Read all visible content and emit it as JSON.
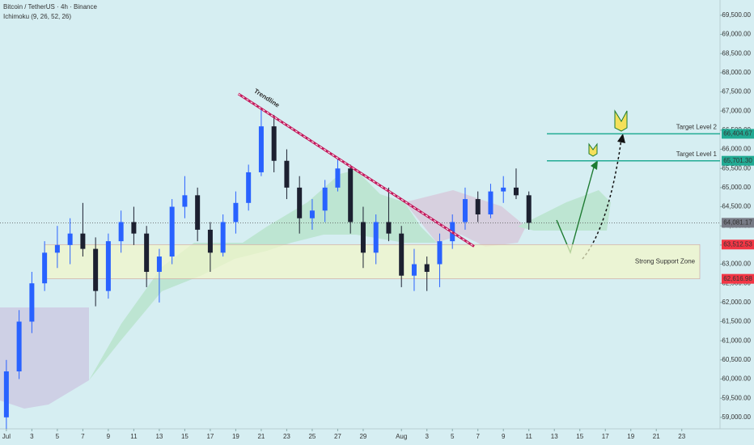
{
  "chart_data": {
    "type": "candlestick",
    "title": "Bitcoin / TetherUS · 4h · Binance",
    "subtitle": "Ichimoku (9, 26, 52, 26)",
    "x": [
      0,
      1,
      2,
      3,
      4,
      5,
      6,
      7,
      8,
      9,
      10,
      11,
      12,
      13,
      14,
      15,
      16,
      17,
      18,
      19,
      20,
      21,
      22,
      23,
      24,
      25,
      26,
      27,
      28,
      29,
      30,
      31,
      32,
      33,
      34,
      35,
      36,
      37,
      38,
      39,
      40,
      41
    ],
    "open": [
      59000,
      60200,
      61500,
      62500,
      63300,
      63500,
      63800,
      63400,
      62300,
      63600,
      64100,
      63800,
      62800,
      63200,
      64500,
      64800,
      63900,
      63300,
      64100,
      64600,
      65400,
      66600,
      65700,
      65000,
      64200,
      64400,
      65000,
      65500,
      64100,
      63300,
      64100,
      63800,
      62700,
      63000,
      63000,
      63600,
      64100,
      64700,
      64300,
      64900,
      65000,
      64800
    ],
    "high": [
      60500,
      61800,
      62800,
      63600,
      64000,
      64200,
      64600,
      63700,
      63800,
      64400,
      64500,
      64000,
      63400,
      64700,
      65300,
      65000,
      64100,
      64300,
      64900,
      65600,
      67100,
      66900,
      66000,
      65300,
      64700,
      65200,
      65800,
      65600,
      64500,
      64300,
      65000,
      64000,
      63400,
      63200,
      63800,
      64300,
      65000,
      64900,
      65100,
      65300,
      65500,
      64900
    ],
    "low": [
      58700,
      60000,
      61200,
      62300,
      62900,
      63000,
      63200,
      61900,
      62100,
      63300,
      63500,
      62400,
      62000,
      63000,
      64200,
      63600,
      62800,
      63200,
      63800,
      64400,
      65300,
      65400,
      64700,
      63800,
      63900,
      64100,
      64900,
      63800,
      62900,
      63000,
      63600,
      62400,
      62300,
      62300,
      62400,
      63400,
      63900,
      64100,
      64200,
      64600,
      64700,
      63900
    ],
    "close": [
      60200,
      61500,
      62500,
      63300,
      63500,
      63800,
      63400,
      62300,
      63600,
      64100,
      63800,
      62800,
      63200,
      64500,
      64800,
      63900,
      63300,
      64100,
      64600,
      65400,
      66600,
      65700,
      65000,
      64200,
      64400,
      65000,
      65500,
      64100,
      63300,
      64100,
      63800,
      62700,
      63000,
      62800,
      63600,
      64100,
      64700,
      64300,
      64900,
      65000,
      64800,
      64081.17
    ],
    "up_color": "#2962ff",
    "down_color": "#1c2030",
    "xlim": [
      -0.5,
      56
    ],
    "xticks": [
      {
        "value": 0,
        "label": "Jul"
      },
      {
        "value": 2,
        "label": "3"
      },
      {
        "value": 4,
        "label": "5"
      },
      {
        "value": 6,
        "label": "7"
      },
      {
        "value": 8,
        "label": "9"
      },
      {
        "value": 10,
        "label": "11"
      },
      {
        "value": 12,
        "label": "13"
      },
      {
        "value": 14,
        "label": "15"
      },
      {
        "value": 16,
        "label": "17"
      },
      {
        "value": 18,
        "label": "19"
      },
      {
        "value": 20,
        "label": "21"
      },
      {
        "value": 22,
        "label": "23"
      },
      {
        "value": 24,
        "label": "25"
      },
      {
        "value": 26,
        "label": "27"
      },
      {
        "value": 28,
        "label": "29"
      },
      {
        "value": 31,
        "label": "Aug"
      },
      {
        "value": 33,
        "label": "3"
      },
      {
        "value": 35,
        "label": "5"
      },
      {
        "value": 37,
        "label": "7"
      },
      {
        "value": 39,
        "label": "9"
      },
      {
        "value": 41,
        "label": "11"
      },
      {
        "value": 43,
        "label": "13"
      },
      {
        "value": 45,
        "label": "15"
      },
      {
        "value": 47,
        "label": "17"
      },
      {
        "value": 49,
        "label": "19"
      },
      {
        "value": 51,
        "label": "21"
      },
      {
        "value": 53,
        "label": "23"
      }
    ],
    "ylim": [
      58700,
      69900
    ],
    "yticks": [
      {
        "value": 59000,
        "label": "59,000.00"
      },
      {
        "value": 59500,
        "label": "59,500.00"
      },
      {
        "value": 60000,
        "label": "60,000.00"
      },
      {
        "value": 60500,
        "label": "60,500.00"
      },
      {
        "value": 61000,
        "label": "61,000.00"
      },
      {
        "value": 61500,
        "label": "61,500.00"
      },
      {
        "value": 62000,
        "label": "62,000.00"
      },
      {
        "value": 62500,
        "label": "62,500.00"
      },
      {
        "value": 63000,
        "label": "63,000.00"
      },
      {
        "value": 63500,
        "label": "63,500.00"
      },
      {
        "value": 64000,
        "label": "64,000.00"
      },
      {
        "value": 64500,
        "label": "64,500.00"
      },
      {
        "value": 65000,
        "label": "65,000.00"
      },
      {
        "value": 65500,
        "label": "65,500.00"
      },
      {
        "value": 66000,
        "label": "66,000.00"
      },
      {
        "value": 66500,
        "label": "66,500.00"
      },
      {
        "value": 67000,
        "label": "67,000.00"
      },
      {
        "value": 67500,
        "label": "67,500.00"
      },
      {
        "value": 68000,
        "label": "68,000.00"
      },
      {
        "value": 68500,
        "label": "68,500.00"
      },
      {
        "value": 69000,
        "label": "69,000.00"
      },
      {
        "value": 69500,
        "label": "69,500.00"
      }
    ],
    "current": {
      "value": 64081.17,
      "label": "64,081.17",
      "color": "#787b86"
    },
    "support_zone": {
      "label": "Strong Support Zone",
      "low": {
        "value": 62616.98,
        "label": "62,616.98"
      },
      "high": {
        "value": 63512.53,
        "label": "63,512.53"
      },
      "color": "#f23645"
    },
    "targets": [
      {
        "label": "Target Level 1",
        "value": 65701.3,
        "value_label": "65,701.30"
      },
      {
        "label": "Target Level 2",
        "value": 66404.67,
        "value_label": "66,404.67"
      }
    ],
    "target_color": "#22ab94",
    "trendline": {
      "label": "Trendline",
      "x": [
        18.2,
        36.7
      ],
      "y": [
        67449,
        63465
      ]
    }
  }
}
